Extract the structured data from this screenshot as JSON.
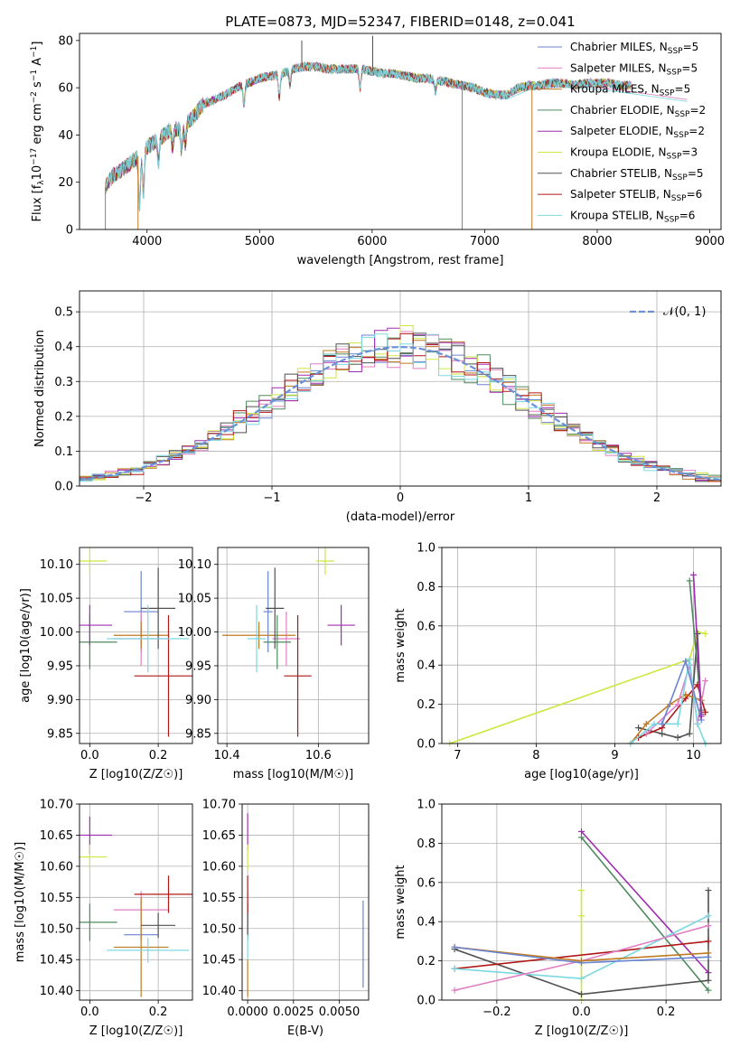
{
  "figure": {
    "title": "PLATE=0873, MJD=52347, FIBERID=0148, z=0.041"
  },
  "colors": {
    "Chabrier MILES": "#6a84d0",
    "Salpeter MILES": "#e07fc4",
    "Kroupa MILES": "#c07a22",
    "Chabrier ELODIE": "#4f8a5e",
    "Salpeter ELODIE": "#a02cb0",
    "Kroupa ELODIE": "#cfe640",
    "Chabrier STELIB": "#505050",
    "Salpeter STELIB": "#b01818",
    "Kroupa STELIB": "#7cd8e0",
    "normal": "#6a90d8"
  },
  "chart_data": [
    {
      "id": "spectrum",
      "type": "line",
      "xlabel": "wavelength [Angstrom, rest frame]",
      "ylabel": "Flux [f_λ10^-17 erg cm^-2 s^-1 A^-1]",
      "xlim": [
        3400,
        9100
      ],
      "ylim": [
        0,
        83
      ],
      "xticks": [
        4000,
        5000,
        6000,
        7000,
        8000,
        9000
      ],
      "yticks": [
        0,
        20,
        40,
        60,
        80
      ],
      "grid": false,
      "legend_position": "top-right",
      "legend": [
        {
          "label": "Chabrier MILES, N",
          "sub": "SSP",
          "tail": "=5"
        },
        {
          "label": "Salpeter MILES, N",
          "sub": "SSP",
          "tail": "=5"
        },
        {
          "label": "Kroupa MILES, N",
          "sub": "SSP",
          "tail": "=5"
        },
        {
          "label": "Chabrier ELODIE, N",
          "sub": "SSP",
          "tail": "=2"
        },
        {
          "label": "Salpeter ELODIE, N",
          "sub": "SSP",
          "tail": "=2"
        },
        {
          "label": "Kroupa ELODIE, N",
          "sub": "SSP",
          "tail": "=3"
        },
        {
          "label": "Chabrier STELIB, N",
          "sub": "SSP",
          "tail": "=5"
        },
        {
          "label": "Salpeter STELIB, N",
          "sub": "SSP",
          "tail": "=6"
        },
        {
          "label": "Kroupa STELIB, N",
          "sub": "SSP",
          "tail": "=6"
        }
      ],
      "continuum": [
        [
          3630,
          18
        ],
        [
          3700,
          23
        ],
        [
          3800,
          26
        ],
        [
          3900,
          30
        ],
        [
          4000,
          35
        ],
        [
          4100,
          38
        ],
        [
          4200,
          42
        ],
        [
          4300,
          43
        ],
        [
          4400,
          47
        ],
        [
          4500,
          53
        ],
        [
          4600,
          55
        ],
        [
          4700,
          57
        ],
        [
          4800,
          60
        ],
        [
          4900,
          62
        ],
        [
          5000,
          64
        ],
        [
          5100,
          65
        ],
        [
          5200,
          66
        ],
        [
          5300,
          68
        ],
        [
          5400,
          69
        ],
        [
          5500,
          69
        ],
        [
          5600,
          68
        ],
        [
          5700,
          68
        ],
        [
          5800,
          68
        ],
        [
          5900,
          68
        ],
        [
          6000,
          67
        ],
        [
          6100,
          66
        ],
        [
          6200,
          66
        ],
        [
          6300,
          65
        ],
        [
          6400,
          64
        ],
        [
          6500,
          64
        ],
        [
          6600,
          63
        ],
        [
          6700,
          62
        ],
        [
          6800,
          61
        ],
        [
          6900,
          60
        ],
        [
          7000,
          58
        ],
        [
          7100,
          57
        ],
        [
          7200,
          57
        ],
        [
          7300,
          60
        ],
        [
          7400,
          61
        ],
        [
          7500,
          61
        ],
        [
          7600,
          62
        ],
        [
          7700,
          62
        ],
        [
          7800,
          61
        ],
        [
          7900,
          62
        ],
        [
          8000,
          62
        ],
        [
          8100,
          62
        ],
        [
          8200,
          61
        ],
        [
          8300,
          61
        ]
      ],
      "model_end": [
        [
          6800,
          61
        ],
        [
          7000,
          58
        ],
        [
          7200,
          56
        ],
        [
          7400,
          60
        ],
        [
          7600,
          61
        ],
        [
          7800,
          61
        ],
        [
          8000,
          60
        ],
        [
          8200,
          59
        ],
        [
          8500,
          57
        ],
        [
          8800,
          55
        ]
      ],
      "absorption_lines": [
        {
          "x": 3933,
          "depth": 22
        },
        {
          "x": 3968,
          "depth": 18
        },
        {
          "x": 4102,
          "depth": 10
        },
        {
          "x": 4227,
          "depth": 7
        },
        {
          "x": 4305,
          "depth": 9
        },
        {
          "x": 4340,
          "depth": 8
        },
        {
          "x": 4861,
          "depth": 8
        },
        {
          "x": 5175,
          "depth": 10
        },
        {
          "x": 5270,
          "depth": 6
        },
        {
          "x": 5893,
          "depth": 8
        },
        {
          "x": 6563,
          "depth": 5
        }
      ],
      "spikes": [
        {
          "x": 3630,
          "value": 0
        },
        {
          "x": 3920,
          "value": 0
        },
        {
          "x": 5375,
          "value": 80
        },
        {
          "x": 6005,
          "value": 82
        },
        {
          "x": 6800,
          "value": 0
        },
        {
          "x": 7420,
          "value": 0
        }
      ]
    },
    {
      "id": "residuals",
      "type": "line",
      "xlabel": "(data-model)/error",
      "ylabel": "Normed distribution",
      "xlim": [
        -2.5,
        2.5
      ],
      "ylim": [
        0,
        0.56
      ],
      "xticks": [
        -2,
        -1,
        0,
        1,
        2
      ],
      "yticks": [
        0.0,
        0.1,
        0.2,
        0.3,
        0.4,
        0.5
      ],
      "grid": true,
      "legend_position": "top-right",
      "legend": [
        "𝒩(0, 1)"
      ],
      "bin_width": 0.1,
      "bin_start": -2.5,
      "sigma": 1.0
    },
    {
      "id": "age_vs_Z",
      "type": "scatter",
      "xlabel": "Z [log10(Z/Z☉)]",
      "ylabel": "age  [log10(age/yr)]",
      "xlim": [
        -0.03,
        0.3
      ],
      "ylim": [
        9.835,
        10.125
      ],
      "xticks": [
        0.0,
        0.2
      ],
      "yticks": [
        9.85,
        9.9,
        9.95,
        10.0,
        10.05,
        10.1
      ],
      "grid": true,
      "points": [
        {
          "model": "Chabrier MILES",
          "x": 0.15,
          "y": 10.03,
          "xerr": 0.05,
          "yerr": 0.06
        },
        {
          "model": "Salpeter MILES",
          "x": 0.15,
          "y": 9.99,
          "xerr": 0.08,
          "yerr": 0.04
        },
        {
          "model": "Kroupa MILES",
          "x": 0.15,
          "y": 9.995,
          "xerr": 0.08,
          "yerr": 0.02
        },
        {
          "model": "Chabrier ELODIE",
          "x": 0.0,
          "y": 9.985,
          "xerr": 0.08,
          "yerr": 0.04
        },
        {
          "model": "Salpeter ELODIE",
          "x": 0.0,
          "y": 10.01,
          "xerr": 0.065,
          "yerr": 0.03
        },
        {
          "model": "Kroupa ELODIE",
          "x": 0.0,
          "y": 10.105,
          "xerr": 0.05,
          "yerr": 0.02
        },
        {
          "model": "Chabrier STELIB",
          "x": 0.2,
          "y": 10.035,
          "xerr": 0.05,
          "yerr": 0.06
        },
        {
          "model": "Salpeter STELIB",
          "x": 0.23,
          "y": 9.935,
          "xerr": 0.1,
          "yerr": 0.09
        },
        {
          "model": "Kroupa STELIB",
          "x": 0.17,
          "y": 9.99,
          "xerr": 0.12,
          "yerr": 0.05
        }
      ]
    },
    {
      "id": "age_vs_mass",
      "type": "scatter",
      "xlabel": "mass [log10(M/M☉)]",
      "ylabel": "",
      "xlim": [
        10.38,
        10.71
      ],
      "ylim": [
        9.835,
        10.125
      ],
      "xticks": [
        10.4,
        10.6
      ],
      "yticks": [
        9.85,
        9.9,
        9.95,
        10.0,
        10.05,
        10.1
      ],
      "grid": true,
      "points": [
        {
          "model": "Chabrier MILES",
          "x": 10.49,
          "y": 10.03,
          "xerr": 0.01,
          "yerr": 0.06
        },
        {
          "model": "Salpeter MILES",
          "x": 10.53,
          "y": 9.99,
          "xerr": 0.03,
          "yerr": 0.04
        },
        {
          "model": "Kroupa MILES",
          "x": 10.47,
          "y": 9.995,
          "xerr": 0.08,
          "yerr": 0.02
        },
        {
          "model": "Chabrier ELODIE",
          "x": 10.51,
          "y": 9.985,
          "xerr": 0.03,
          "yerr": 0.04
        },
        {
          "model": "Salpeter ELODIE",
          "x": 10.65,
          "y": 10.01,
          "xerr": 0.03,
          "yerr": 0.03
        },
        {
          "model": "Kroupa ELODIE",
          "x": 10.615,
          "y": 10.105,
          "xerr": 0.02,
          "yerr": 0.02
        },
        {
          "model": "Chabrier STELIB",
          "x": 10.505,
          "y": 10.035,
          "xerr": 0.02,
          "yerr": 0.06
        },
        {
          "model": "Salpeter STELIB",
          "x": 10.555,
          "y": 9.935,
          "xerr": 0.03,
          "yerr": 0.09
        },
        {
          "model": "Kroupa STELIB",
          "x": 10.465,
          "y": 9.99,
          "xerr": 0.02,
          "yerr": 0.05
        }
      ]
    },
    {
      "id": "weight_vs_age",
      "type": "line",
      "xlabel": "age  [log10(age/yr)]",
      "ylabel": "mass weight",
      "xlim": [
        6.8,
        10.35
      ],
      "ylim": [
        0,
        1.0
      ],
      "xticks": [
        7,
        8,
        9,
        10
      ],
      "yticks": [
        0.0,
        0.2,
        0.4,
        0.6,
        0.8,
        1.0
      ],
      "grid": true,
      "series": [
        {
          "model": "Kroupa ELODIE",
          "x": [
            6.9,
            9.95,
            10.05,
            10.15
          ],
          "y": [
            0.0,
            0.43,
            0.57,
            0.56
          ]
        },
        {
          "model": "Chabrier STELIB",
          "x": [
            9.3,
            9.6,
            9.8,
            9.95,
            10.05,
            10.1
          ],
          "y": [
            0.08,
            0.05,
            0.03,
            0.05,
            0.56,
            0.15
          ]
        },
        {
          "model": "Salpeter STELIB",
          "x": [
            9.3,
            9.6,
            9.9,
            10.05,
            10.15
          ],
          "y": [
            0.03,
            0.08,
            0.23,
            0.3,
            0.16
          ]
        },
        {
          "model": "Kroupa MILES",
          "x": [
            9.2,
            9.4,
            9.7,
            9.9,
            10.1
          ],
          "y": [
            0.0,
            0.1,
            0.2,
            0.25,
            0.22
          ]
        },
        {
          "model": "Salpeter MILES",
          "x": [
            9.4,
            9.8,
            9.95,
            10.05,
            10.15
          ],
          "y": [
            0.05,
            0.2,
            0.4,
            0.1,
            0.32
          ]
        },
        {
          "model": "Kroupa STELIB",
          "x": [
            9.2,
            9.5,
            9.8,
            9.95,
            10.05,
            10.15
          ],
          "y": [
            0.0,
            0.1,
            0.1,
            0.43,
            0.1,
            0.0
          ]
        },
        {
          "model": "Chabrier MILES",
          "x": [
            9.6,
            9.9,
            10.1
          ],
          "y": [
            0.1,
            0.42,
            0.12
          ]
        },
        {
          "model": "Chabrier ELODIE",
          "x": [
            9.95,
            10.1
          ],
          "y": [
            0.83,
            0.17
          ]
        },
        {
          "model": "Salpeter ELODIE",
          "x": [
            10.0,
            10.1
          ],
          "y": [
            0.86,
            0.14
          ]
        }
      ]
    },
    {
      "id": "mass_vs_Z",
      "type": "scatter",
      "xlabel": "Z [log10(Z/Z☉)]",
      "ylabel": "mass [log10(M/M☉)]",
      "xlim": [
        -0.03,
        0.3
      ],
      "ylim": [
        10.385,
        10.7
      ],
      "xticks": [
        0.0,
        0.2
      ],
      "yticks": [
        10.4,
        10.45,
        10.5,
        10.55,
        10.6,
        10.65,
        10.7
      ],
      "grid": true,
      "points": [
        {
          "model": "Chabrier MILES",
          "x": 0.15,
          "y": 10.49,
          "xerr": 0.05,
          "yerr": 0.01
        },
        {
          "model": "Salpeter MILES",
          "x": 0.15,
          "y": 10.53,
          "xerr": 0.08,
          "yerr": 0.03
        },
        {
          "model": "Kroupa MILES",
          "x": 0.15,
          "y": 10.47,
          "xerr": 0.08,
          "yerr": 0.08
        },
        {
          "model": "Chabrier ELODIE",
          "x": 0.0,
          "y": 10.51,
          "xerr": 0.08,
          "yerr": 0.03
        },
        {
          "model": "Salpeter ELODIE",
          "x": 0.0,
          "y": 10.65,
          "xerr": 0.065,
          "yerr": 0.03
        },
        {
          "model": "Kroupa ELODIE",
          "x": 0.0,
          "y": 10.615,
          "xerr": 0.05,
          "yerr": 0.02
        },
        {
          "model": "Chabrier STELIB",
          "x": 0.2,
          "y": 10.505,
          "xerr": 0.05,
          "yerr": 0.02
        },
        {
          "model": "Salpeter STELIB",
          "x": 0.23,
          "y": 10.555,
          "xerr": 0.1,
          "yerr": 0.03
        },
        {
          "model": "Kroupa STELIB",
          "x": 0.17,
          "y": 10.465,
          "xerr": 0.12,
          "yerr": 0.02
        }
      ]
    },
    {
      "id": "mass_vs_ebv",
      "type": "scatter",
      "xlabel": "E(B-V)",
      "ylabel": "",
      "xlim": [
        -0.0003,
        0.0066
      ],
      "ylim": [
        10.385,
        10.7
      ],
      "xticks": [
        0.0,
        0.0025,
        0.005
      ],
      "xtick_labels": [
        "0.0000",
        "0.0025",
        "0.0050"
      ],
      "yticks": [
        10.4,
        10.45,
        10.5,
        10.55,
        10.6,
        10.65,
        10.7
      ],
      "grid": true,
      "points": [
        {
          "model": "Chabrier MILES",
          "x": 0.0063,
          "y": 10.475,
          "xerr": 0.0,
          "yerr": 0.07
        },
        {
          "model": "Salpeter MILES",
          "x": 0.0,
          "y": 10.53,
          "xerr": 0.0,
          "yerr": 0.03
        },
        {
          "model": "Kroupa MILES",
          "x": 0.0,
          "y": 10.42,
          "xerr": 0.0,
          "yerr": 0.03
        },
        {
          "model": "Chabrier ELODIE",
          "x": 0.0,
          "y": 10.51,
          "xerr": 0.0,
          "yerr": 0.03
        },
        {
          "model": "Salpeter ELODIE",
          "x": 0.0,
          "y": 10.655,
          "xerr": 0.0,
          "yerr": 0.03
        },
        {
          "model": "Kroupa ELODIE",
          "x": 0.0,
          "y": 10.615,
          "xerr": 0.0,
          "yerr": 0.02
        },
        {
          "model": "Chabrier STELIB",
          "x": 0.0,
          "y": 10.505,
          "xerr": 0.0,
          "yerr": 0.02
        },
        {
          "model": "Salpeter STELIB",
          "x": 0.0,
          "y": 10.555,
          "xerr": 0.0,
          "yerr": 0.03
        },
        {
          "model": "Kroupa STELIB",
          "x": 0.0,
          "y": 10.47,
          "xerr": 0.0,
          "yerr": 0.02
        }
      ]
    },
    {
      "id": "weight_vs_Z",
      "type": "line",
      "xlabel": "Z [log10(Z/Z☉)]",
      "ylabel": "mass weight",
      "xlim": [
        -0.33,
        0.33
      ],
      "ylim": [
        0,
        1.0
      ],
      "xticks": [
        -0.2,
        0.0,
        0.2
      ],
      "xtick_labels": [
        "−0.2",
        "0.0",
        "0.2"
      ],
      "yticks": [
        0.0,
        0.2,
        0.4,
        0.6,
        0.8,
        1.0
      ],
      "grid": true,
      "series": [
        {
          "model": "Chabrier ELODIE",
          "x": [
            0.0,
            0.3
          ],
          "y": [
            0.83,
            0.05
          ]
        },
        {
          "model": "Salpeter ELODIE",
          "x": [
            0.0,
            0.3
          ],
          "y": [
            0.86,
            0.14
          ]
        },
        {
          "model": "Kroupa ELODIE",
          "x": [
            0.0,
            0.0,
            0.0
          ],
          "y": [
            0.0,
            0.43,
            0.56
          ]
        },
        {
          "model": "Chabrier STELIB",
          "x": [
            -0.3,
            0.0,
            0.3,
            0.3
          ],
          "y": [
            0.26,
            0.03,
            0.1,
            0.56
          ]
        },
        {
          "model": "Salpeter STELIB",
          "x": [
            -0.3,
            0.3
          ],
          "y": [
            0.16,
            0.3
          ]
        },
        {
          "model": "Kroupa STELIB",
          "x": [
            -0.3,
            0.0,
            0.3
          ],
          "y": [
            0.16,
            0.11,
            0.43
          ]
        },
        {
          "model": "Salpeter MILES",
          "x": [
            -0.3,
            0.0,
            0.3
          ],
          "y": [
            0.05,
            0.2,
            0.38
          ]
        },
        {
          "model": "Kroupa MILES",
          "x": [
            -0.3,
            0.0,
            0.3
          ],
          "y": [
            0.27,
            0.2,
            0.24
          ]
        },
        {
          "model": "Chabrier MILES",
          "x": [
            -0.3,
            0.0,
            0.3
          ],
          "y": [
            0.27,
            0.19,
            0.22
          ]
        }
      ]
    }
  ]
}
